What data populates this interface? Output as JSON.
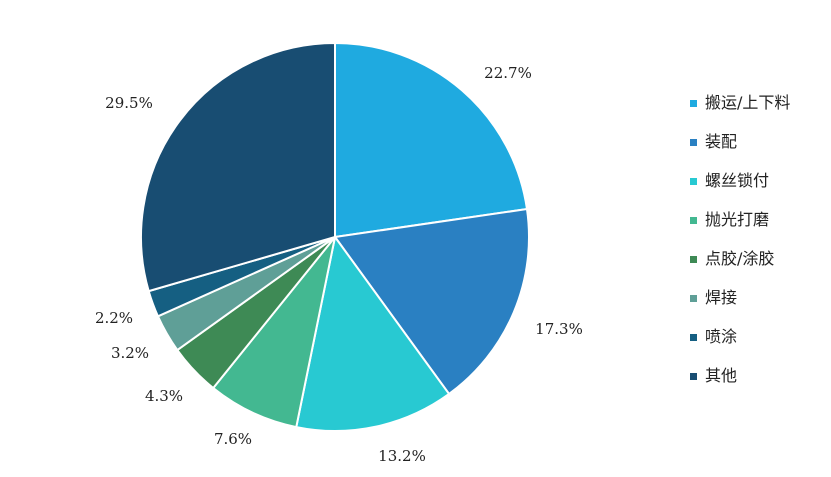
{
  "chart_data": {
    "type": "pie",
    "title": "",
    "slices": [
      {
        "label": "搬运/上下料",
        "value": 22.7,
        "value_label": "22.7%",
        "color": "#1faae0"
      },
      {
        "label": "装配",
        "value": 17.3,
        "value_label": "17.3%",
        "color": "#2a80c2"
      },
      {
        "label": "螺丝锁付",
        "value": 13.2,
        "value_label": "13.2%",
        "color": "#28c9d2"
      },
      {
        "label": "抛光打磨",
        "value": 7.6,
        "value_label": "7.6%",
        "color": "#43b891"
      },
      {
        "label": "点胶/涂胶",
        "value": 4.3,
        "value_label": "4.3%",
        "color": "#3e8a55"
      },
      {
        "label": "焊接",
        "value": 3.2,
        "value_label": "3.2%",
        "color": "#5f9f97"
      },
      {
        "label": "喷涂",
        "value": 2.2,
        "value_label": "2.2%",
        "color": "#155f82"
      },
      {
        "label": "其他",
        "value": 29.5,
        "value_label": "29.5%",
        "color": "#184d72"
      }
    ],
    "start_angle": "12 o'clock",
    "direction": "clockwise",
    "legend_position": "right"
  }
}
